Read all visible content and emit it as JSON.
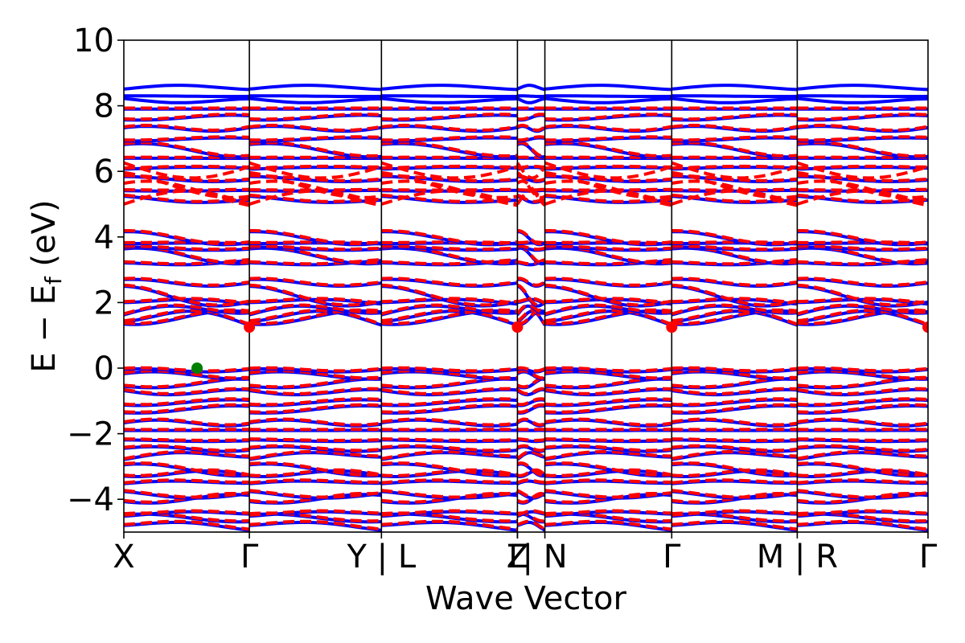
{
  "chart_data": {
    "type": "line",
    "xlabel": "Wave Vector",
    "ylabel_parts": {
      "main": "E − E",
      "sub": "f",
      "unit": " (eV)"
    },
    "ylim": [
      -5,
      10
    ],
    "yticks": [
      {
        "value": 10,
        "label": "10"
      },
      {
        "value": 8,
        "label": "8"
      },
      {
        "value": 6,
        "label": "6"
      },
      {
        "value": 4,
        "label": "4"
      },
      {
        "value": 2,
        "label": "2"
      },
      {
        "value": 0,
        "label": "0"
      },
      {
        "value": -2,
        "label": "−2"
      },
      {
        "value": -4,
        "label": "−4"
      }
    ],
    "xlim": [
      0,
      6.15
    ],
    "kpoints": [
      {
        "x": 0.0,
        "label": "X"
      },
      {
        "x": 0.96,
        "label": "Γ"
      },
      {
        "x": 1.97,
        "label": "Y | L"
      },
      {
        "x": 3.01,
        "label": "Γ"
      },
      {
        "x": 3.01,
        "label": "Z"
      },
      {
        "x": 3.22,
        "label": "| N"
      },
      {
        "x": 4.19,
        "label": "Γ"
      },
      {
        "x": 5.15,
        "label": "M | R"
      },
      {
        "x": 6.15,
        "label": "Γ"
      }
    ],
    "segment_boundaries": [
      0.96,
      1.97,
      3.01,
      3.22,
      4.19,
      5.15
    ],
    "series": [
      {
        "style": "solid",
        "color": "#0000ff"
      },
      {
        "style": "dashed",
        "color": "#ff0000"
      }
    ],
    "markers": [
      {
        "x": 0.56,
        "y": 0.0,
        "color": "#008000"
      },
      {
        "x": 0.96,
        "y": 1.25,
        "color": "#ff0000"
      },
      {
        "x": 3.01,
        "y": 1.25,
        "color": "#ff0000"
      },
      {
        "x": 4.19,
        "y": 1.25,
        "color": "#ff0000"
      },
      {
        "x": 6.15,
        "y": 1.25,
        "color": "#ff0000"
      }
    ]
  }
}
